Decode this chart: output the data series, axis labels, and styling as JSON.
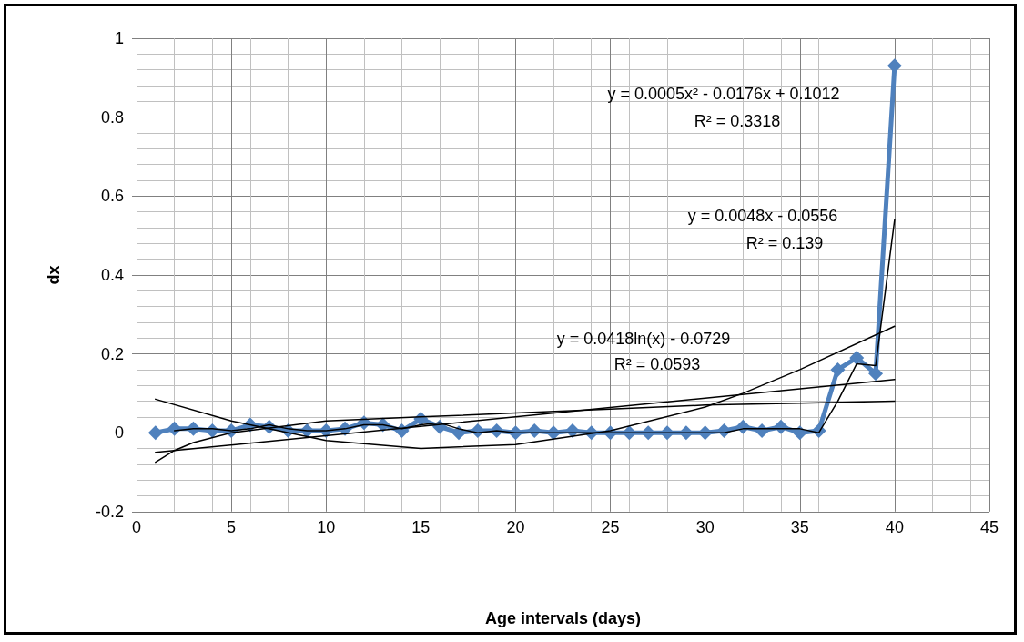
{
  "chart_data": {
    "type": "line",
    "xlabel": "Age intervals (days)",
    "ylabel": "dx",
    "xlim": [
      0,
      45
    ],
    "xticks": [
      0,
      5,
      10,
      15,
      20,
      25,
      30,
      35,
      40,
      45
    ],
    "ylim": [
      -0.2,
      1
    ],
    "yticks": [
      -0.2,
      0,
      0.2,
      0.4,
      0.6,
      0.8,
      1
    ],
    "grid": true,
    "series": [
      {
        "color": "#4f81bd",
        "marker": "diamond",
        "x": [
          1,
          2,
          3,
          4,
          5,
          6,
          7,
          8,
          9,
          10,
          11,
          12,
          13,
          14,
          15,
          16,
          17,
          18,
          19,
          20,
          21,
          22,
          23,
          24,
          25,
          26,
          27,
          28,
          29,
          30,
          31,
          32,
          33,
          34,
          35,
          36,
          37,
          38,
          39,
          40
        ],
        "values": [
          0,
          0.01,
          0.01,
          0.005,
          0.005,
          0.02,
          0.015,
          0.005,
          0.005,
          0.005,
          0.01,
          0.025,
          0.02,
          0.005,
          0.035,
          0.015,
          0,
          0.005,
          0.005,
          0,
          0.005,
          0,
          0.005,
          0,
          0,
          0,
          0,
          0,
          0,
          0,
          0.005,
          0.015,
          0.005,
          0.015,
          0,
          0.005,
          0.16,
          0.19,
          0.15,
          0.93
        ]
      },
      {
        "color": "#000000",
        "marker": "none",
        "x": [
          2,
          3,
          4,
          5,
          6,
          7,
          8,
          9,
          10,
          11,
          12,
          13,
          14,
          15,
          16,
          17,
          18,
          19,
          20,
          21,
          22,
          23,
          24,
          25,
          26,
          27,
          28,
          29,
          30,
          31,
          32,
          33,
          34,
          35,
          36,
          37,
          38,
          39,
          40
        ],
        "values": [
          0.005,
          0.01,
          0.01,
          0.005,
          0.01,
          0.02,
          0.01,
          0.005,
          0.005,
          0.01,
          0.02,
          0.02,
          0.01,
          0.02,
          0.025,
          0.01,
          0,
          0.005,
          0,
          0,
          0,
          0,
          0,
          0,
          0,
          0,
          0,
          0,
          0,
          0,
          0.01,
          0.01,
          0.01,
          0.01,
          0,
          0.08,
          0.175,
          0.17,
          0.54
        ]
      },
      {
        "color": "#000000",
        "marker": "none",
        "x": [
          1,
          5,
          10,
          15,
          20,
          25,
          30,
          32,
          35,
          40
        ],
        "values": [
          0.085,
          0.03,
          -0.02,
          -0.04,
          -0.03,
          0.005,
          0.065,
          0.1,
          0.16,
          0.27
        ]
      },
      {
        "color": "#000000",
        "marker": "none",
        "x": [
          1,
          40
        ],
        "values": [
          -0.05,
          0.135
        ]
      },
      {
        "color": "#000000",
        "marker": "none",
        "x": [
          1,
          2,
          3,
          5,
          10,
          15,
          20,
          25,
          30,
          35,
          40
        ],
        "values": [
          -0.075,
          -0.045,
          -0.025,
          0,
          0.03,
          0.04,
          0.05,
          0.06,
          0.07,
          0.075,
          0.08
        ]
      }
    ],
    "annotations": [
      "y = 0.0005x² - 0.0176x + 0.1012",
      "R² = 0.3318",
      "y = 0.0048x - 0.0556",
      "R² = 0.139",
      "y = 0.0418ln(x) - 0.0729",
      "R² = 0.0593"
    ]
  }
}
